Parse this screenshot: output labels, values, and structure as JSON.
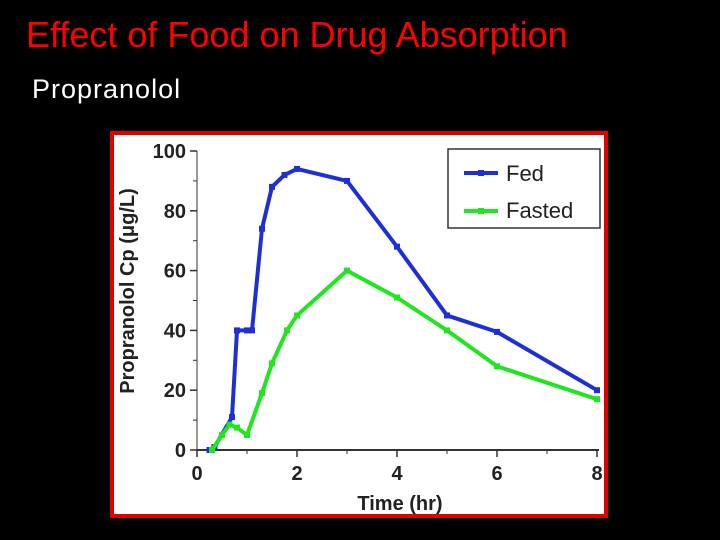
{
  "slide": {
    "title": "Effect of Food on Drug Absorption",
    "subtitle": "Propranolol"
  },
  "colors": {
    "title": "#ff0000",
    "frame": "#e00000",
    "fed": "#1f2fd6",
    "fasted": "#1fe61f"
  },
  "chart_data": {
    "type": "line",
    "title": "",
    "xlabel": "Time (hr)",
    "ylabel": "Propranolol Cp (μg/L)",
    "xlim": [
      0,
      8
    ],
    "ylim": [
      0,
      100
    ],
    "xticks": [
      0,
      2,
      4,
      6,
      8
    ],
    "yticks": [
      0,
      20,
      40,
      60,
      80,
      100
    ],
    "x_tick_labels": [
      "0",
      "2",
      "4",
      "6",
      "8"
    ],
    "y_tick_labels": [
      "0",
      "20",
      "40",
      "60",
      "80",
      "100"
    ],
    "grid": false,
    "legend_position": "top-right",
    "series": [
      {
        "name": "Fed",
        "color": "#1f2fd6",
        "points": [
          [
            0.25,
            0
          ],
          [
            0.35,
            1
          ],
          [
            0.7,
            11
          ],
          [
            0.8,
            40
          ],
          [
            1.0,
            40
          ],
          [
            1.1,
            40
          ],
          [
            1.3,
            74
          ],
          [
            1.5,
            88
          ],
          [
            1.75,
            92
          ],
          [
            2.0,
            94
          ],
          [
            3.0,
            90
          ],
          [
            4.0,
            68
          ],
          [
            5.0,
            45
          ],
          [
            6.0,
            39.5
          ],
          [
            8.0,
            20
          ]
        ]
      },
      {
        "name": "Fasted",
        "color": "#1fe61f",
        "points": [
          [
            0.3,
            0
          ],
          [
            0.5,
            5
          ],
          [
            0.65,
            8.5
          ],
          [
            0.8,
            7.5
          ],
          [
            1.0,
            5
          ],
          [
            1.3,
            19
          ],
          [
            1.5,
            29
          ],
          [
            1.8,
            40
          ],
          [
            2.0,
            45
          ],
          [
            3.0,
            60
          ],
          [
            4.0,
            51
          ],
          [
            5.0,
            40
          ],
          [
            6.0,
            28
          ],
          [
            8.0,
            17
          ]
        ]
      }
    ]
  }
}
